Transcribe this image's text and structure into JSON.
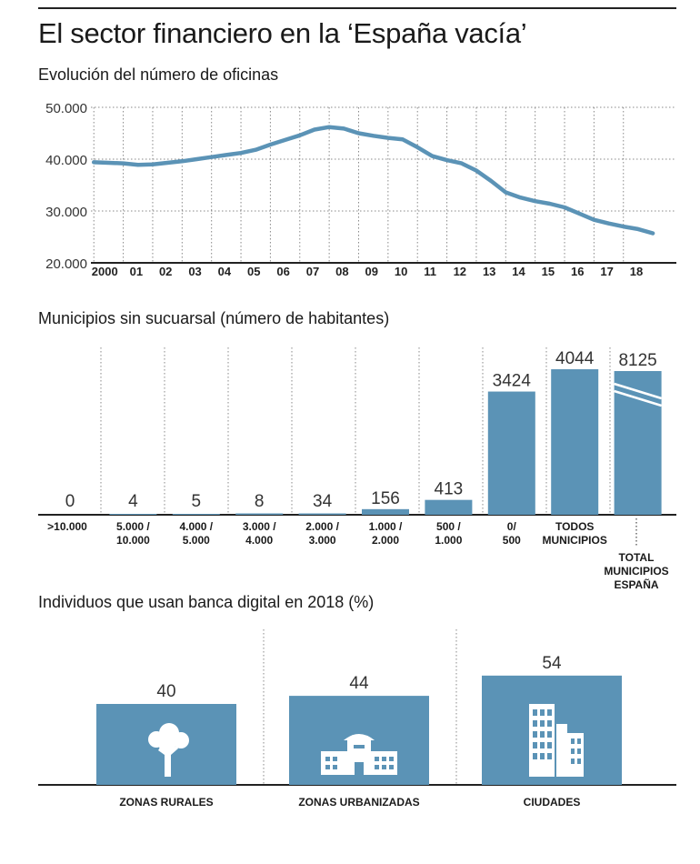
{
  "title": "El sector financiero en la ‘España vacía’",
  "colors": {
    "bar": "#5b93b6",
    "line": "#5b93b6",
    "grid": "#888888",
    "axis": "#222222"
  },
  "chart_data": [
    {
      "type": "line",
      "title": "Evolución del número de oficinas",
      "x": [
        2000,
        2000.5,
        2001,
        2001.5,
        2002,
        2002.5,
        2003,
        2003.5,
        2004,
        2004.5,
        2005,
        2005.5,
        2006,
        2006.5,
        2007,
        2007.5,
        2008,
        2008.5,
        2009,
        2009.5,
        2010,
        2010.5,
        2011,
        2011.5,
        2012,
        2012.5,
        2013,
        2013.5,
        2014,
        2014.5,
        2015,
        2015.5,
        2016,
        2016.5,
        2017,
        2017.5,
        2018,
        2018.5,
        2019
      ],
      "y": [
        39400,
        39300,
        39200,
        38900,
        39000,
        39300,
        39600,
        40000,
        40400,
        40800,
        41200,
        41800,
        42800,
        43700,
        44600,
        45700,
        46200,
        45900,
        45000,
        44500,
        44100,
        43800,
        42300,
        40600,
        39800,
        39200,
        37800,
        35800,
        33600,
        32600,
        31900,
        31400,
        30700,
        29500,
        28300,
        27600,
        27000,
        26500,
        25700
      ],
      "tick_labels": [
        "2000",
        "01",
        "02",
        "03",
        "04",
        "05",
        "06",
        "07",
        "08",
        "09",
        "10",
        "11",
        "12",
        "13",
        "14",
        "15",
        "16",
        "17",
        "18"
      ],
      "tick_positions": [
        2000,
        2001,
        2002,
        2003,
        2004,
        2005,
        2006,
        2007,
        2008,
        2009,
        2010,
        2011,
        2012,
        2013,
        2014,
        2015,
        2016,
        2017,
        2018
      ],
      "y_ticks": [
        20000,
        30000,
        40000,
        50000
      ],
      "y_tick_labels": [
        "20.000",
        "30.000",
        "40.000",
        "50.000"
      ],
      "ylim": [
        20000,
        50000
      ],
      "xlim": [
        1999.9,
        2019.8
      ],
      "grid": true
    },
    {
      "type": "bar",
      "title": "Municipios sin sucuarsal (número de habitantes)",
      "categories": [
        [
          ">10.000"
        ],
        [
          "5.000 /",
          "10.000"
        ],
        [
          "4.000 /",
          "5.000"
        ],
        [
          "3.000 /",
          "4.000"
        ],
        [
          "2.000 /",
          "3.000"
        ],
        [
          "1.000 /",
          "2.000"
        ],
        [
          "500 /",
          "1.000"
        ],
        [
          "0/",
          "500"
        ],
        [
          "TODOS",
          "MUNICIPIOS"
        ],
        [
          "TOTAL",
          "MUNICIPIOS",
          "ESPAÑA"
        ]
      ],
      "values": [
        0,
        4,
        5,
        8,
        34,
        156,
        413,
        3424,
        4044,
        8125
      ],
      "value_labels": [
        "0",
        "4",
        "5",
        "8",
        "34",
        "156",
        "413",
        "3424",
        "4044",
        "8125"
      ],
      "broken_bar_index": 9
    },
    {
      "type": "bar",
      "title": "Individuos que usan banca digital en 2018 (%)",
      "categories": [
        "ZONAS RURALES",
        "ZONAS URBANIZADAS",
        "CIUDADES"
      ],
      "values": [
        40,
        44,
        54
      ],
      "value_labels": [
        "40",
        "44",
        "54"
      ],
      "icons": [
        "tree-icon",
        "low-buildings-icon",
        "city-buildings-icon"
      ]
    }
  ]
}
